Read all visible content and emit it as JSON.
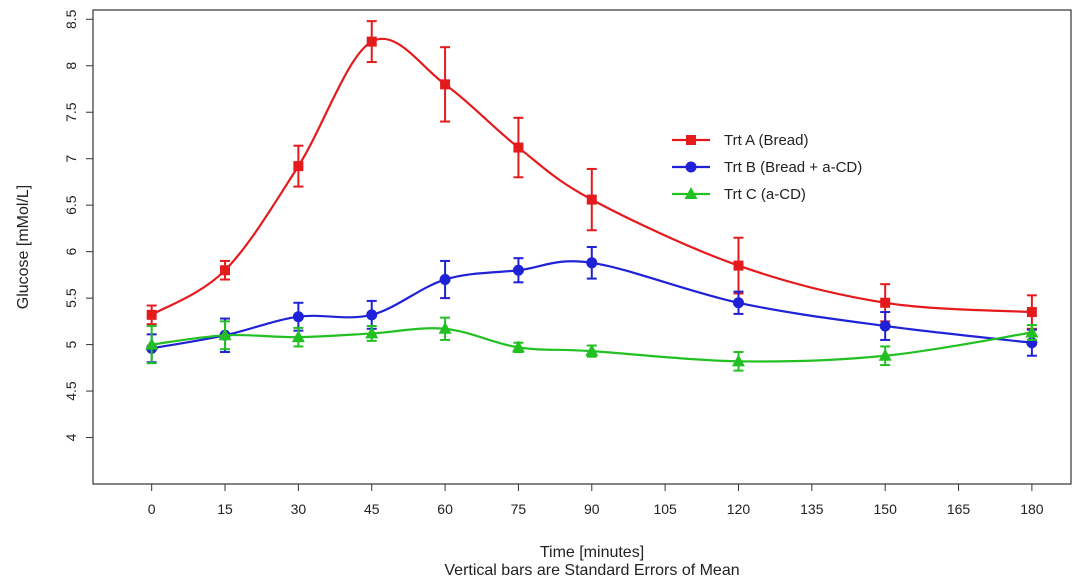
{
  "chart_data": {
    "type": "line",
    "xlabel": "Time [minutes]",
    "subtitle": "Vertical bars are Standard Errors of Mean",
    "ylabel": "Glucose [mMol/L]",
    "xlim": [
      -12,
      188
    ],
    "ylim": [
      3.5,
      8.6
    ],
    "xticks": [
      0,
      15,
      30,
      45,
      60,
      75,
      90,
      105,
      120,
      135,
      150,
      165,
      180
    ],
    "yticks": [
      4,
      4.5,
      5,
      5.5,
      6,
      6.5,
      7,
      7.5,
      8,
      8.5
    ],
    "grid": false,
    "legend_position": "right",
    "series": [
      {
        "name": "Trt A (Bread)",
        "color": "#e41a1c",
        "marker": "square",
        "x": [
          0,
          15,
          30,
          45,
          60,
          75,
          90,
          120,
          150,
          180
        ],
        "y": [
          5.32,
          5.8,
          6.92,
          8.26,
          7.8,
          7.12,
          6.56,
          5.85,
          5.45,
          5.35
        ],
        "err": [
          0.1,
          0.1,
          0.22,
          0.22,
          0.4,
          0.32,
          0.33,
          0.3,
          0.2,
          0.18
        ]
      },
      {
        "name": "Trt B (Bread + a-CD)",
        "color": "#1f22d6",
        "marker": "circle",
        "x": [
          0,
          15,
          30,
          45,
          60,
          75,
          90,
          120,
          150,
          180
        ],
        "y": [
          4.96,
          5.1,
          5.3,
          5.32,
          5.7,
          5.8,
          5.88,
          5.45,
          5.2,
          5.02
        ],
        "err": [
          0.15,
          0.18,
          0.15,
          0.15,
          0.2,
          0.13,
          0.17,
          0.12,
          0.15,
          0.14
        ]
      },
      {
        "name": "Trt C (a-CD)",
        "color": "#22c022",
        "marker": "triangle",
        "x": [
          0,
          15,
          30,
          45,
          60,
          75,
          90,
          120,
          150,
          180
        ],
        "y": [
          5.0,
          5.1,
          5.08,
          5.12,
          5.17,
          4.97,
          4.93,
          4.82,
          4.88,
          5.13
        ],
        "err": [
          0.2,
          0.15,
          0.1,
          0.08,
          0.12,
          0.05,
          0.06,
          0.1,
          0.1,
          0.08
        ]
      }
    ]
  }
}
